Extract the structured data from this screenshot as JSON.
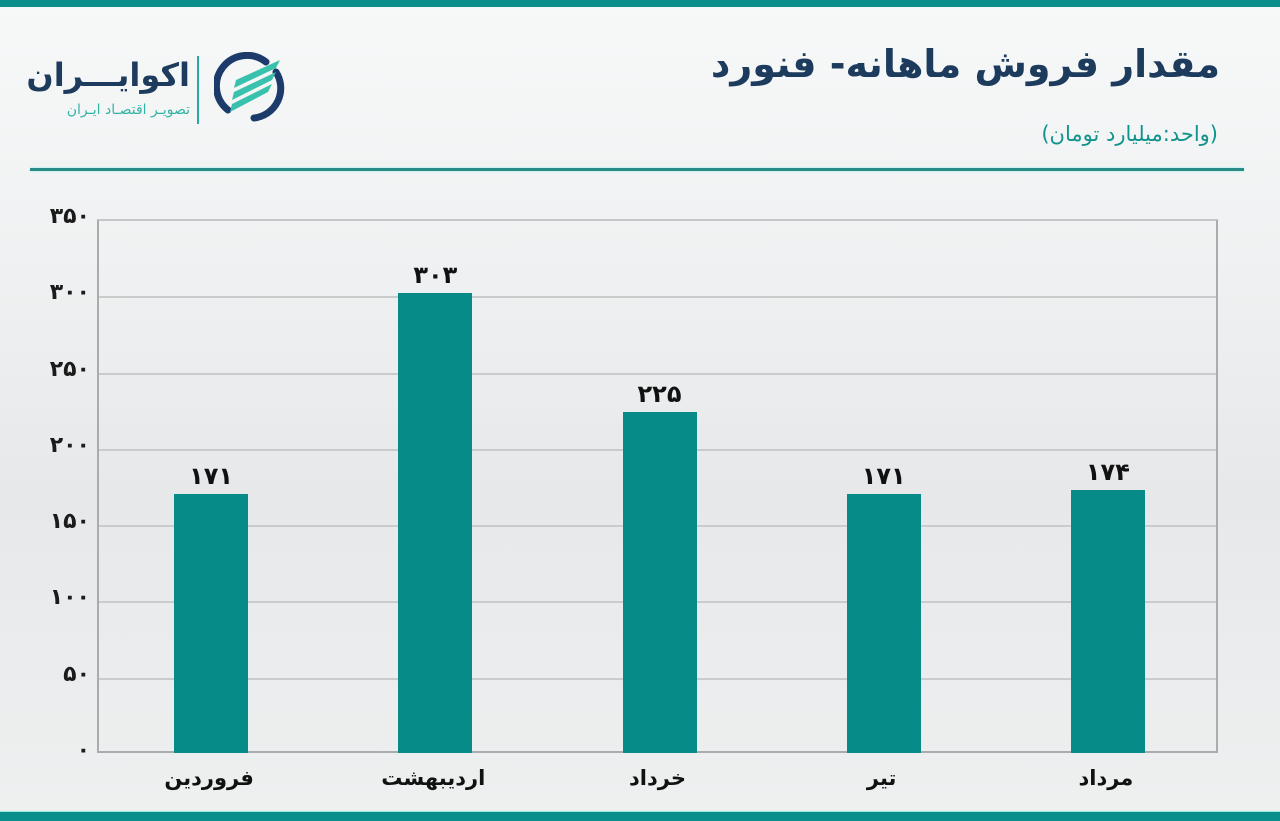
{
  "header": {
    "title": "مقدار فروش ماهانه- فنورد",
    "subtitle": "(واحد:میلیارد تومان)"
  },
  "logo": {
    "name": "اکوایـــران",
    "tagline": "تصویـر اقتصـاد ایـران",
    "icon": "ecoiran-logo-icon"
  },
  "colors": {
    "accent": "#0b8f8c",
    "bar": "#078b88",
    "title": "#1d3b5c",
    "subtitle": "#13938d",
    "grid": "#c9cbcd"
  },
  "chart_data": {
    "type": "bar",
    "title": "مقدار فروش ماهانه- فنورد",
    "subtitle": "(واحد:میلیارد تومان)",
    "xlabel": "",
    "ylabel": "",
    "categories": [
      "فروردین",
      "اردیبهشت",
      "خرداد",
      "تیر",
      "مرداد"
    ],
    "values": [
      171,
      303,
      225,
      171,
      174
    ],
    "value_labels": [
      "۱۷۱",
      "۳۰۳",
      "۲۲۵",
      "۱۷۱",
      "۱۷۴"
    ],
    "ylim": [
      0,
      350
    ],
    "yticks": [
      0,
      50,
      100,
      150,
      200,
      250,
      300,
      350
    ],
    "ytick_labels": [
      "۰",
      "۵۰",
      "۱۰۰",
      "۱۵۰",
      "۲۰۰",
      "۲۵۰",
      "۳۰۰",
      "۳۵۰"
    ],
    "grid": true,
    "legend": "none",
    "unit": "میلیارد تومان"
  }
}
